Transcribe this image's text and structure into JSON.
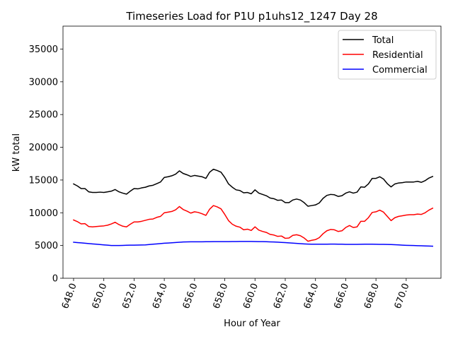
{
  "chart_data": {
    "type": "line",
    "title": "Timeseries Load for P1U p1uhs12_1247  Day 28",
    "xlabel": "Hour of Year",
    "ylabel": "kW total",
    "xlim": [
      647.3,
      672.3
    ],
    "ylim": [
      0,
      38500
    ],
    "xticks": [
      648,
      650,
      652,
      654,
      656,
      658,
      660,
      662,
      664,
      666,
      668,
      670
    ],
    "xtick_labels": [
      "648.0",
      "650.0",
      "652.0",
      "654.0",
      "656.0",
      "658.0",
      "660.0",
      "662.0",
      "664.0",
      "666.0",
      "668.0",
      "670.0"
    ],
    "yticks": [
      0,
      5000,
      10000,
      15000,
      20000,
      25000,
      30000,
      35000
    ],
    "ytick_labels": [
      "0",
      "5000",
      "10000",
      "15000",
      "20000",
      "25000",
      "30000",
      "35000"
    ],
    "x": [
      648.0,
      648.25,
      648.5,
      648.75,
      649.0,
      649.25,
      649.5,
      649.75,
      650.0,
      650.25,
      650.5,
      650.75,
      651.0,
      651.25,
      651.5,
      651.75,
      652.0,
      652.25,
      652.5,
      652.75,
      653.0,
      653.25,
      653.5,
      653.75,
      654.0,
      654.25,
      654.5,
      654.75,
      655.0,
      655.25,
      655.5,
      655.75,
      656.0,
      656.25,
      656.5,
      656.75,
      657.0,
      657.25,
      657.5,
      657.75,
      658.0,
      658.25,
      658.5,
      658.75,
      659.0,
      659.25,
      659.5,
      659.75,
      660.0,
      660.25,
      660.5,
      660.75,
      661.0,
      661.25,
      661.5,
      661.75,
      662.0,
      662.25,
      662.5,
      662.75,
      663.0,
      663.25,
      663.5,
      663.75,
      664.0,
      664.25,
      664.5,
      664.75,
      665.0,
      665.25,
      665.5,
      665.75,
      666.0,
      666.25,
      666.5,
      666.75,
      667.0,
      667.25,
      667.5,
      667.75,
      668.0,
      668.25,
      668.5,
      668.75,
      669.0,
      669.25,
      669.5,
      669.75,
      670.0,
      670.25,
      670.5,
      670.75,
      671.0,
      671.25,
      671.5,
      671.75
    ],
    "series": [
      {
        "name": "Total",
        "color": "#000000",
        "values": [
          14400,
          14100,
          13700,
          13700,
          13200,
          13100,
          13100,
          13150,
          13100,
          13200,
          13300,
          13550,
          13200,
          13000,
          12850,
          13300,
          13700,
          13650,
          13800,
          13900,
          14100,
          14200,
          14450,
          14700,
          15400,
          15500,
          15650,
          15900,
          16400,
          16000,
          15800,
          15550,
          15700,
          15600,
          15500,
          15250,
          16200,
          16650,
          16450,
          16200,
          15400,
          14400,
          13900,
          13500,
          13400,
          13050,
          13100,
          12900,
          13500,
          13000,
          12800,
          12600,
          12250,
          12150,
          11900,
          11950,
          11550,
          11550,
          11950,
          12100,
          11950,
          11550,
          11000,
          11100,
          11200,
          11500,
          12200,
          12650,
          12800,
          12750,
          12500,
          12600,
          13000,
          13200,
          13000,
          13150,
          13950,
          13900,
          14400,
          15250,
          15250,
          15500,
          15150,
          14450,
          13950,
          14400,
          14550,
          14600,
          14700,
          14700,
          14700,
          14800,
          14650,
          14900,
          15300,
          15550
        ]
      },
      {
        "name": "Residential",
        "color": "#ff0000",
        "values": [
          8900,
          8650,
          8300,
          8350,
          7900,
          7850,
          7900,
          7950,
          8000,
          8100,
          8300,
          8550,
          8200,
          7950,
          7850,
          8250,
          8600,
          8600,
          8700,
          8850,
          9000,
          9050,
          9300,
          9450,
          10000,
          10100,
          10200,
          10450,
          10950,
          10500,
          10250,
          9950,
          10150,
          10050,
          9850,
          9600,
          10550,
          11100,
          10900,
          10600,
          9750,
          8800,
          8250,
          7950,
          7800,
          7400,
          7500,
          7300,
          7850,
          7350,
          7150,
          7000,
          6700,
          6600,
          6400,
          6450,
          6100,
          6150,
          6550,
          6650,
          6500,
          6150,
          5650,
          5800,
          5900,
          6200,
          6800,
          7250,
          7450,
          7400,
          7150,
          7250,
          7750,
          8050,
          7750,
          7850,
          8700,
          8700,
          9250,
          10050,
          10150,
          10400,
          10100,
          9450,
          8800,
          9250,
          9450,
          9550,
          9650,
          9700,
          9700,
          9800,
          9750,
          10000,
          10400,
          10700
        ]
      },
      {
        "name": "Commercial",
        "color": "#0000ff",
        "values": [
          5500,
          5450,
          5400,
          5350,
          5300,
          5250,
          5200,
          5150,
          5100,
          5050,
          5000,
          5000,
          5000,
          5020,
          5040,
          5050,
          5060,
          5070,
          5080,
          5100,
          5150,
          5200,
          5250,
          5300,
          5350,
          5380,
          5420,
          5460,
          5500,
          5540,
          5560,
          5570,
          5570,
          5570,
          5570,
          5580,
          5580,
          5590,
          5590,
          5600,
          5600,
          5600,
          5610,
          5610,
          5620,
          5620,
          5620,
          5620,
          5610,
          5600,
          5590,
          5580,
          5560,
          5540,
          5510,
          5480,
          5440,
          5400,
          5370,
          5330,
          5290,
          5250,
          5220,
          5200,
          5200,
          5200,
          5200,
          5210,
          5220,
          5220,
          5210,
          5200,
          5180,
          5170,
          5170,
          5180,
          5190,
          5200,
          5200,
          5200,
          5190,
          5180,
          5170,
          5160,
          5150,
          5120,
          5090,
          5060,
          5030,
          5010,
          5000,
          4980,
          4960,
          4940,
          4920,
          4900
        ]
      }
    ],
    "legend": {
      "position": "top-right",
      "entries": [
        "Total",
        "Residential",
        "Commercial"
      ]
    }
  }
}
